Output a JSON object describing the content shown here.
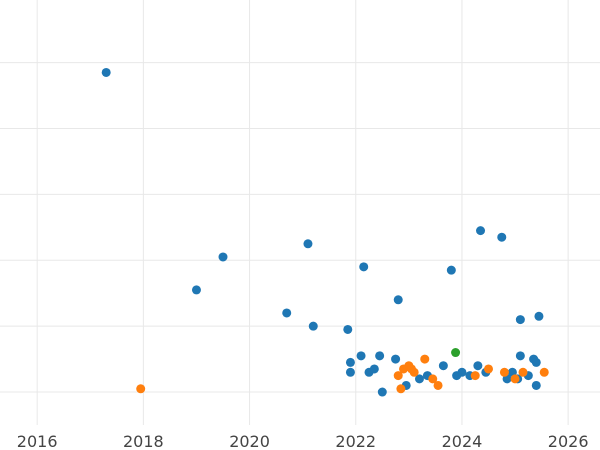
{
  "chart_data": {
    "type": "scatter",
    "title": "",
    "xlabel": "",
    "ylabel": "",
    "xlim": [
      2015.3,
      2026.6
    ],
    "ylim": [
      0,
      12.9
    ],
    "x_ticks": [
      "2016",
      "2018",
      "2020",
      "2022",
      "2024",
      "2026"
    ],
    "y_ticks": [],
    "grid": true,
    "legend": "none",
    "series": [
      {
        "color": "#1f77b4",
        "points": [
          {
            "x": 2017.3,
            "y": 10.7
          },
          {
            "x": 2019.0,
            "y": 4.1
          },
          {
            "x": 2019.5,
            "y": 5.1
          },
          {
            "x": 2020.7,
            "y": 3.4
          },
          {
            "x": 2021.1,
            "y": 5.5
          },
          {
            "x": 2021.2,
            "y": 3.0
          },
          {
            "x": 2021.85,
            "y": 2.9
          },
          {
            "x": 2021.9,
            "y": 1.9
          },
          {
            "x": 2021.9,
            "y": 1.6
          },
          {
            "x": 2022.1,
            "y": 2.1
          },
          {
            "x": 2022.15,
            "y": 4.8
          },
          {
            "x": 2022.25,
            "y": 1.6
          },
          {
            "x": 2022.35,
            "y": 1.7
          },
          {
            "x": 2022.45,
            "y": 2.1
          },
          {
            "x": 2022.5,
            "y": 1.0
          },
          {
            "x": 2022.75,
            "y": 2.0
          },
          {
            "x": 2022.8,
            "y": 3.8
          },
          {
            "x": 2022.95,
            "y": 1.2
          },
          {
            "x": 2023.2,
            "y": 1.4
          },
          {
            "x": 2023.35,
            "y": 1.5
          },
          {
            "x": 2023.65,
            "y": 1.8
          },
          {
            "x": 2023.8,
            "y": 4.7
          },
          {
            "x": 2023.9,
            "y": 1.5
          },
          {
            "x": 2024.0,
            "y": 1.6
          },
          {
            "x": 2024.15,
            "y": 1.5
          },
          {
            "x": 2024.3,
            "y": 1.8
          },
          {
            "x": 2024.35,
            "y": 5.9
          },
          {
            "x": 2024.45,
            "y": 1.6
          },
          {
            "x": 2024.75,
            "y": 5.7
          },
          {
            "x": 2024.85,
            "y": 1.4
          },
          {
            "x": 2024.95,
            "y": 1.6
          },
          {
            "x": 2025.05,
            "y": 1.4
          },
          {
            "x": 2025.1,
            "y": 3.2
          },
          {
            "x": 2025.1,
            "y": 2.1
          },
          {
            "x": 2025.25,
            "y": 1.5
          },
          {
            "x": 2025.35,
            "y": 2.0
          },
          {
            "x": 2025.4,
            "y": 1.9
          },
          {
            "x": 2025.4,
            "y": 1.2
          },
          {
            "x": 2025.45,
            "y": 3.3
          }
        ]
      },
      {
        "color": "#ff7f0e",
        "points": [
          {
            "x": 2017.95,
            "y": 1.1
          },
          {
            "x": 2022.8,
            "y": 1.5
          },
          {
            "x": 2022.85,
            "y": 1.1
          },
          {
            "x": 2022.9,
            "y": 1.7
          },
          {
            "x": 2023.0,
            "y": 1.8
          },
          {
            "x": 2023.05,
            "y": 1.7
          },
          {
            "x": 2023.1,
            "y": 1.6
          },
          {
            "x": 2023.3,
            "y": 2.0
          },
          {
            "x": 2023.45,
            "y": 1.4
          },
          {
            "x": 2023.55,
            "y": 1.2
          },
          {
            "x": 2024.25,
            "y": 1.5
          },
          {
            "x": 2024.5,
            "y": 1.7
          },
          {
            "x": 2024.8,
            "y": 1.6
          },
          {
            "x": 2025.0,
            "y": 1.4
          },
          {
            "x": 2025.15,
            "y": 1.6
          },
          {
            "x": 2025.55,
            "y": 1.6
          }
        ]
      },
      {
        "color": "#2ca02c",
        "points": [
          {
            "x": 2023.88,
            "y": 2.2
          }
        ]
      }
    ]
  }
}
